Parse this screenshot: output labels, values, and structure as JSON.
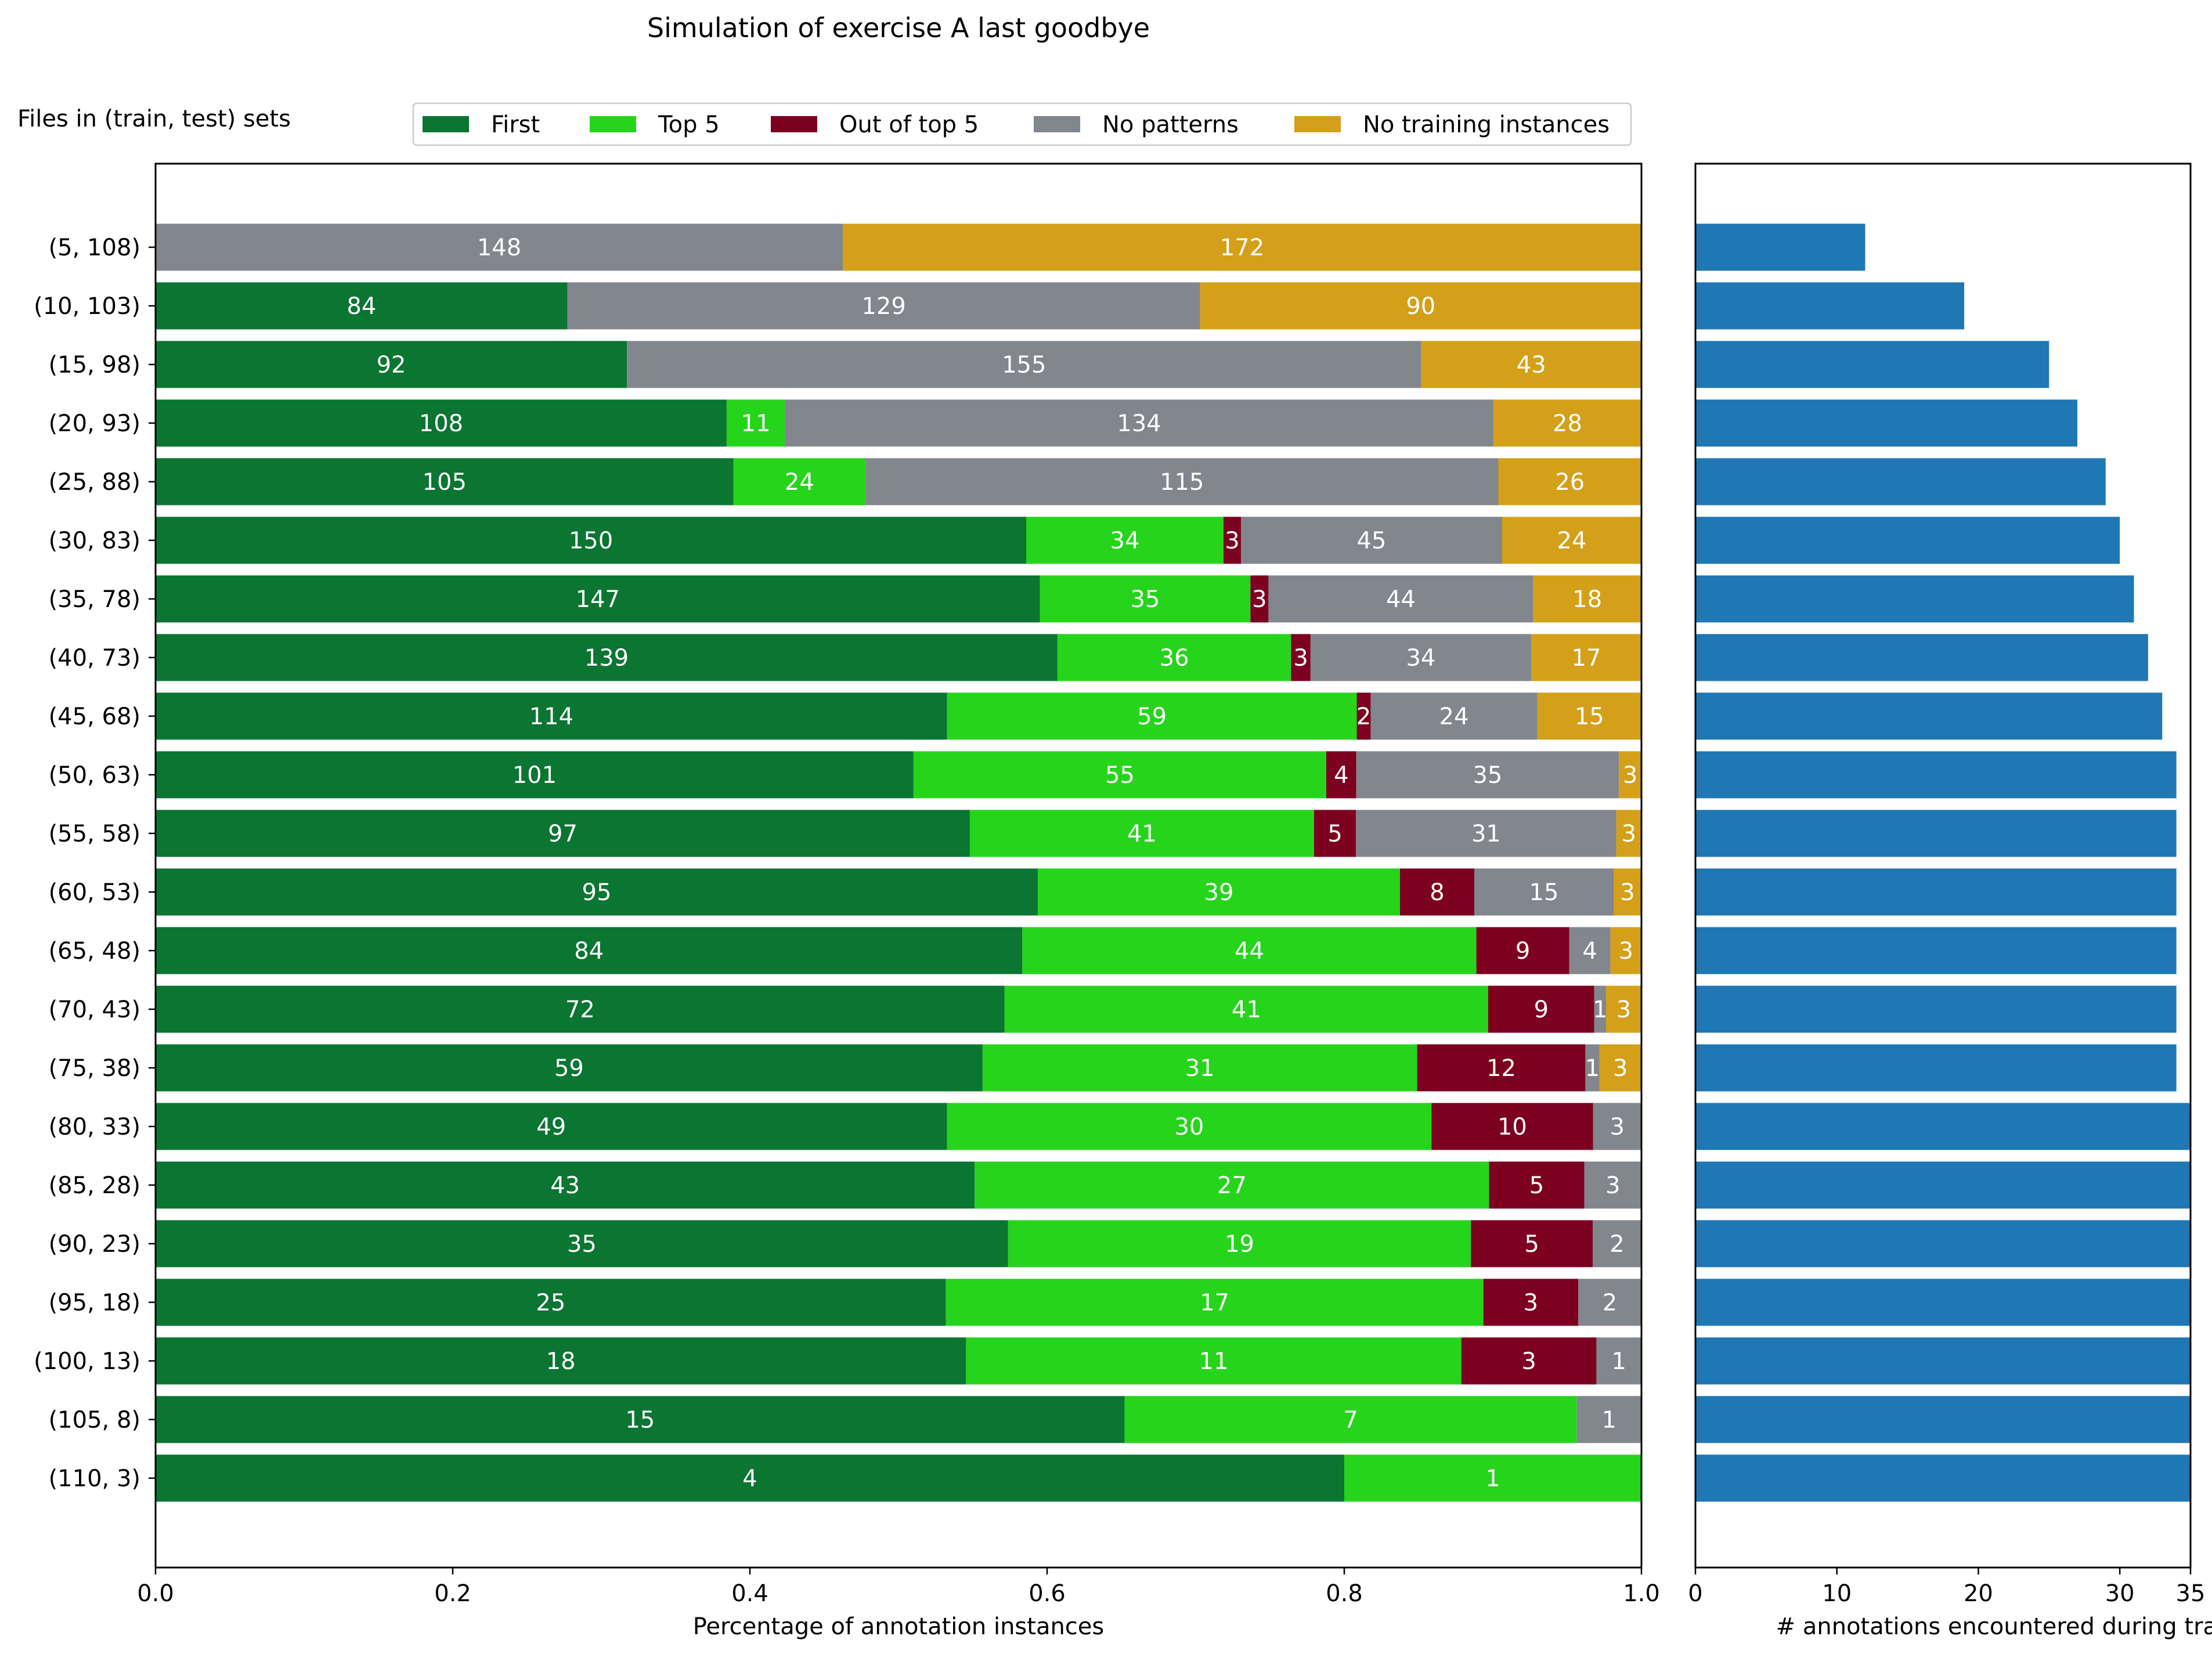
{
  "chart_data": [
    {
      "type": "bar",
      "orientation": "horizontal",
      "stacked": true,
      "normalized": true,
      "title": "Simulation of exercise A last goodbye",
      "ylabel": "Files in (train, test) sets",
      "xlabel": "Percentage of annotation instances",
      "xlim": [
        0,
        1
      ],
      "xticks": [
        "0.0",
        "0.2",
        "0.4",
        "0.6",
        "0.8",
        "1.0"
      ],
      "legend_position": "top",
      "categories": [
        "(5, 108)",
        "(10, 103)",
        "(15, 98)",
        "(20, 93)",
        "(25, 88)",
        "(30, 83)",
        "(35, 78)",
        "(40, 73)",
        "(45, 68)",
        "(50, 63)",
        "(55, 58)",
        "(60, 53)",
        "(65, 48)",
        "(70, 43)",
        "(75, 38)",
        "(80, 33)",
        "(85, 28)",
        "(90, 23)",
        "(95, 18)",
        "(100, 13)",
        "(105, 8)",
        "(110, 3)"
      ],
      "series": [
        {
          "name": "First",
          "color": "#0b7532",
          "label_color": "#ffffff",
          "values": [
            0,
            84,
            92,
            108,
            105,
            150,
            147,
            139,
            114,
            101,
            97,
            95,
            84,
            72,
            59,
            49,
            43,
            35,
            25,
            18,
            15,
            4
          ]
        },
        {
          "name": "Top 5",
          "color": "#26d41c",
          "label_color": "#ffffff",
          "values": [
            0,
            0,
            0,
            11,
            24,
            34,
            35,
            36,
            59,
            55,
            41,
            39,
            44,
            41,
            31,
            30,
            27,
            19,
            17,
            11,
            7,
            1
          ]
        },
        {
          "name": "Out of top 5",
          "color": "#7d0020",
          "label_color": "#ffffff",
          "values": [
            0,
            0,
            0,
            0,
            0,
            3,
            3,
            3,
            2,
            4,
            5,
            8,
            9,
            9,
            12,
            10,
            5,
            5,
            3,
            3,
            0,
            0
          ]
        },
        {
          "name": "No patterns",
          "color": "#82868d",
          "label_color": "#ffffff",
          "values": [
            148,
            129,
            155,
            134,
            115,
            45,
            44,
            34,
            24,
            35,
            31,
            15,
            4,
            1,
            1,
            3,
            3,
            2,
            2,
            1,
            1,
            0
          ]
        },
        {
          "name": "No training instances",
          "color": "#d4a01a",
          "label_color": "#ffffff",
          "values": [
            172,
            90,
            43,
            28,
            26,
            24,
            18,
            17,
            15,
            3,
            3,
            3,
            3,
            3,
            3,
            0,
            0,
            0,
            0,
            0,
            0,
            0
          ]
        }
      ]
    },
    {
      "type": "bar",
      "orientation": "horizontal",
      "xlabel": "# annotations encountered during training",
      "xlim": [
        0,
        35
      ],
      "xticks": [
        "0",
        "10",
        "20",
        "30",
        "35"
      ],
      "color": "#1f77b4",
      "categories": [
        "(5, 108)",
        "(10, 103)",
        "(15, 98)",
        "(20, 93)",
        "(25, 88)",
        "(30, 83)",
        "(35, 78)",
        "(40, 73)",
        "(45, 68)",
        "(50, 63)",
        "(55, 58)",
        "(60, 53)",
        "(65, 48)",
        "(70, 43)",
        "(75, 38)",
        "(80, 33)",
        "(85, 28)",
        "(90, 23)",
        "(95, 18)",
        "(100, 13)",
        "(105, 8)",
        "(110, 3)"
      ],
      "values": [
        12,
        19,
        25,
        27,
        29,
        30,
        31,
        32,
        33,
        34,
        34,
        34,
        34,
        34,
        34,
        35,
        35,
        35,
        35,
        35,
        35,
        35
      ]
    }
  ]
}
